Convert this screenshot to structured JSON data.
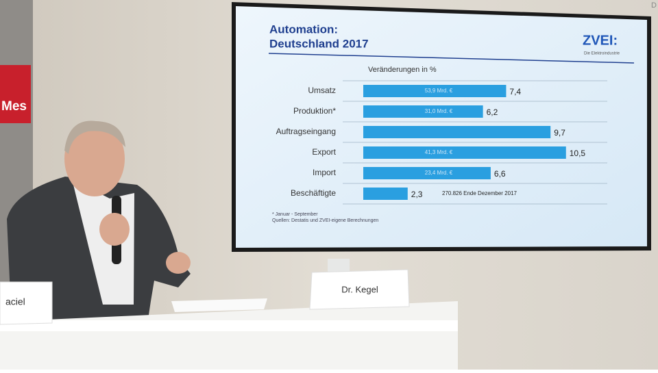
{
  "chart_data": {
    "type": "bar",
    "orientation": "horizontal",
    "title": "Automation:",
    "subtitle": "Deutschland 2017",
    "axis_label": "Veränderungen in %",
    "categories": [
      "Umsatz",
      "Produktion*",
      "Auftragseingang",
      "Export",
      "Import",
      "Beschäftigte"
    ],
    "values": [
      7.4,
      6.2,
      9.7,
      10.5,
      6.6,
      2.3
    ],
    "value_labels": [
      "7,4",
      "6,2",
      "9,7",
      "10,5",
      "6,6",
      "2,3"
    ],
    "bar_notes": [
      "53,9 Mrd. €",
      "31,0 Mrd. €",
      null,
      "41,3 Mrd. €",
      "23,4 Mrd. €",
      null
    ],
    "side_note": "270.826 Ende Dezember 2017",
    "footnotes": [
      "* Januar - September",
      "Quellen: Destatis und ZVEI-eigene Berechnungen"
    ],
    "xlim": [
      0,
      12
    ],
    "color": "#2a9fe0"
  },
  "logo": {
    "name": "ZVEI:",
    "tagline": "Die Elektroindustrie"
  },
  "name_cards": [
    "Dr. Kegel",
    "aciel"
  ],
  "sign": "Mes",
  "corner_text": "D"
}
